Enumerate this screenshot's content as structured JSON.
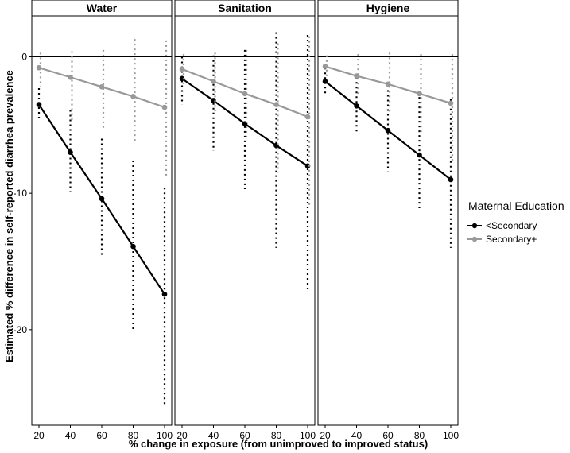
{
  "chart_data": {
    "type": "line",
    "xlabel": "% change in exposure (from unimproved to improved status)",
    "ylabel": "Estimated % difference in self-reported diarrhea prevalence",
    "x": [
      20,
      40,
      60,
      80,
      100
    ],
    "x_ticks": [
      "20",
      "40",
      "60",
      "80",
      "100"
    ],
    "y_ticks": [
      "0",
      "-10",
      "-20"
    ],
    "ylim": [
      -27,
      3
    ],
    "grid": false,
    "legend": {
      "title": "Maternal Education",
      "placement": "right",
      "entries": [
        "<Secondary",
        "Secondary+"
      ]
    },
    "colors": {
      "<Secondary": "#000000",
      "Secondary+": "#999999"
    },
    "panels": [
      {
        "title": "Water",
        "series": [
          {
            "name": "<Secondary",
            "values": [
              -3.5,
              -7.0,
              -10.4,
              -13.9,
              -17.4
            ],
            "ci_lower": [
              -4.7,
              -9.9,
              -14.7,
              -20.1,
              -25.5
            ],
            "ci_upper": [
              -2.3,
              -3.9,
              -6.0,
              -7.6,
              -9.6
            ]
          },
          {
            "name": "Secondary+",
            "values": [
              -0.8,
              -1.5,
              -2.2,
              -2.9,
              -3.7
            ],
            "ci_lower": [
              -2.2,
              -4.8,
              -5.2,
              -6.3,
              -8.8
            ],
            "ci_upper": [
              0.3,
              0.4,
              0.5,
              1.3,
              1.2
            ]
          }
        ]
      },
      {
        "title": "Sanitation",
        "series": [
          {
            "name": "<Secondary",
            "values": [
              -1.6,
              -3.2,
              -4.9,
              -6.5,
              -8.0
            ],
            "ci_lower": [
              -3.5,
              -6.9,
              -9.7,
              -14.0,
              -17.2
            ],
            "ci_upper": [
              0.0,
              0.1,
              0.5,
              1.8,
              1.6
            ]
          },
          {
            "name": "Secondary+",
            "values": [
              -0.9,
              -1.8,
              -2.7,
              -3.5,
              -4.4
            ],
            "ci_lower": [
              -2.0,
              -4.0,
              -6.2,
              -8.5,
              -11.0
            ],
            "ci_upper": [
              0.2,
              0.3,
              0.5,
              1.0,
              1.5
            ]
          }
        ]
      },
      {
        "title": "Hygiene",
        "series": [
          {
            "name": "<Secondary",
            "values": [
              -1.8,
              -3.6,
              -5.4,
              -7.2,
              -9.0
            ],
            "ci_lower": [
              -2.9,
              -5.5,
              -8.4,
              -11.1,
              -14.0
            ],
            "ci_upper": [
              -0.8,
              -1.5,
              -2.1,
              -2.6,
              -3.1
            ]
          },
          {
            "name": "Secondary+",
            "values": [
              -0.7,
              -1.4,
              -2.0,
              -2.7,
              -3.4
            ],
            "ci_lower": [
              -1.5,
              -2.8,
              -4.1,
              -5.7,
              -7.6
            ],
            "ci_upper": [
              0.1,
              0.2,
              0.3,
              0.2,
              0.2
            ]
          }
        ]
      }
    ]
  }
}
